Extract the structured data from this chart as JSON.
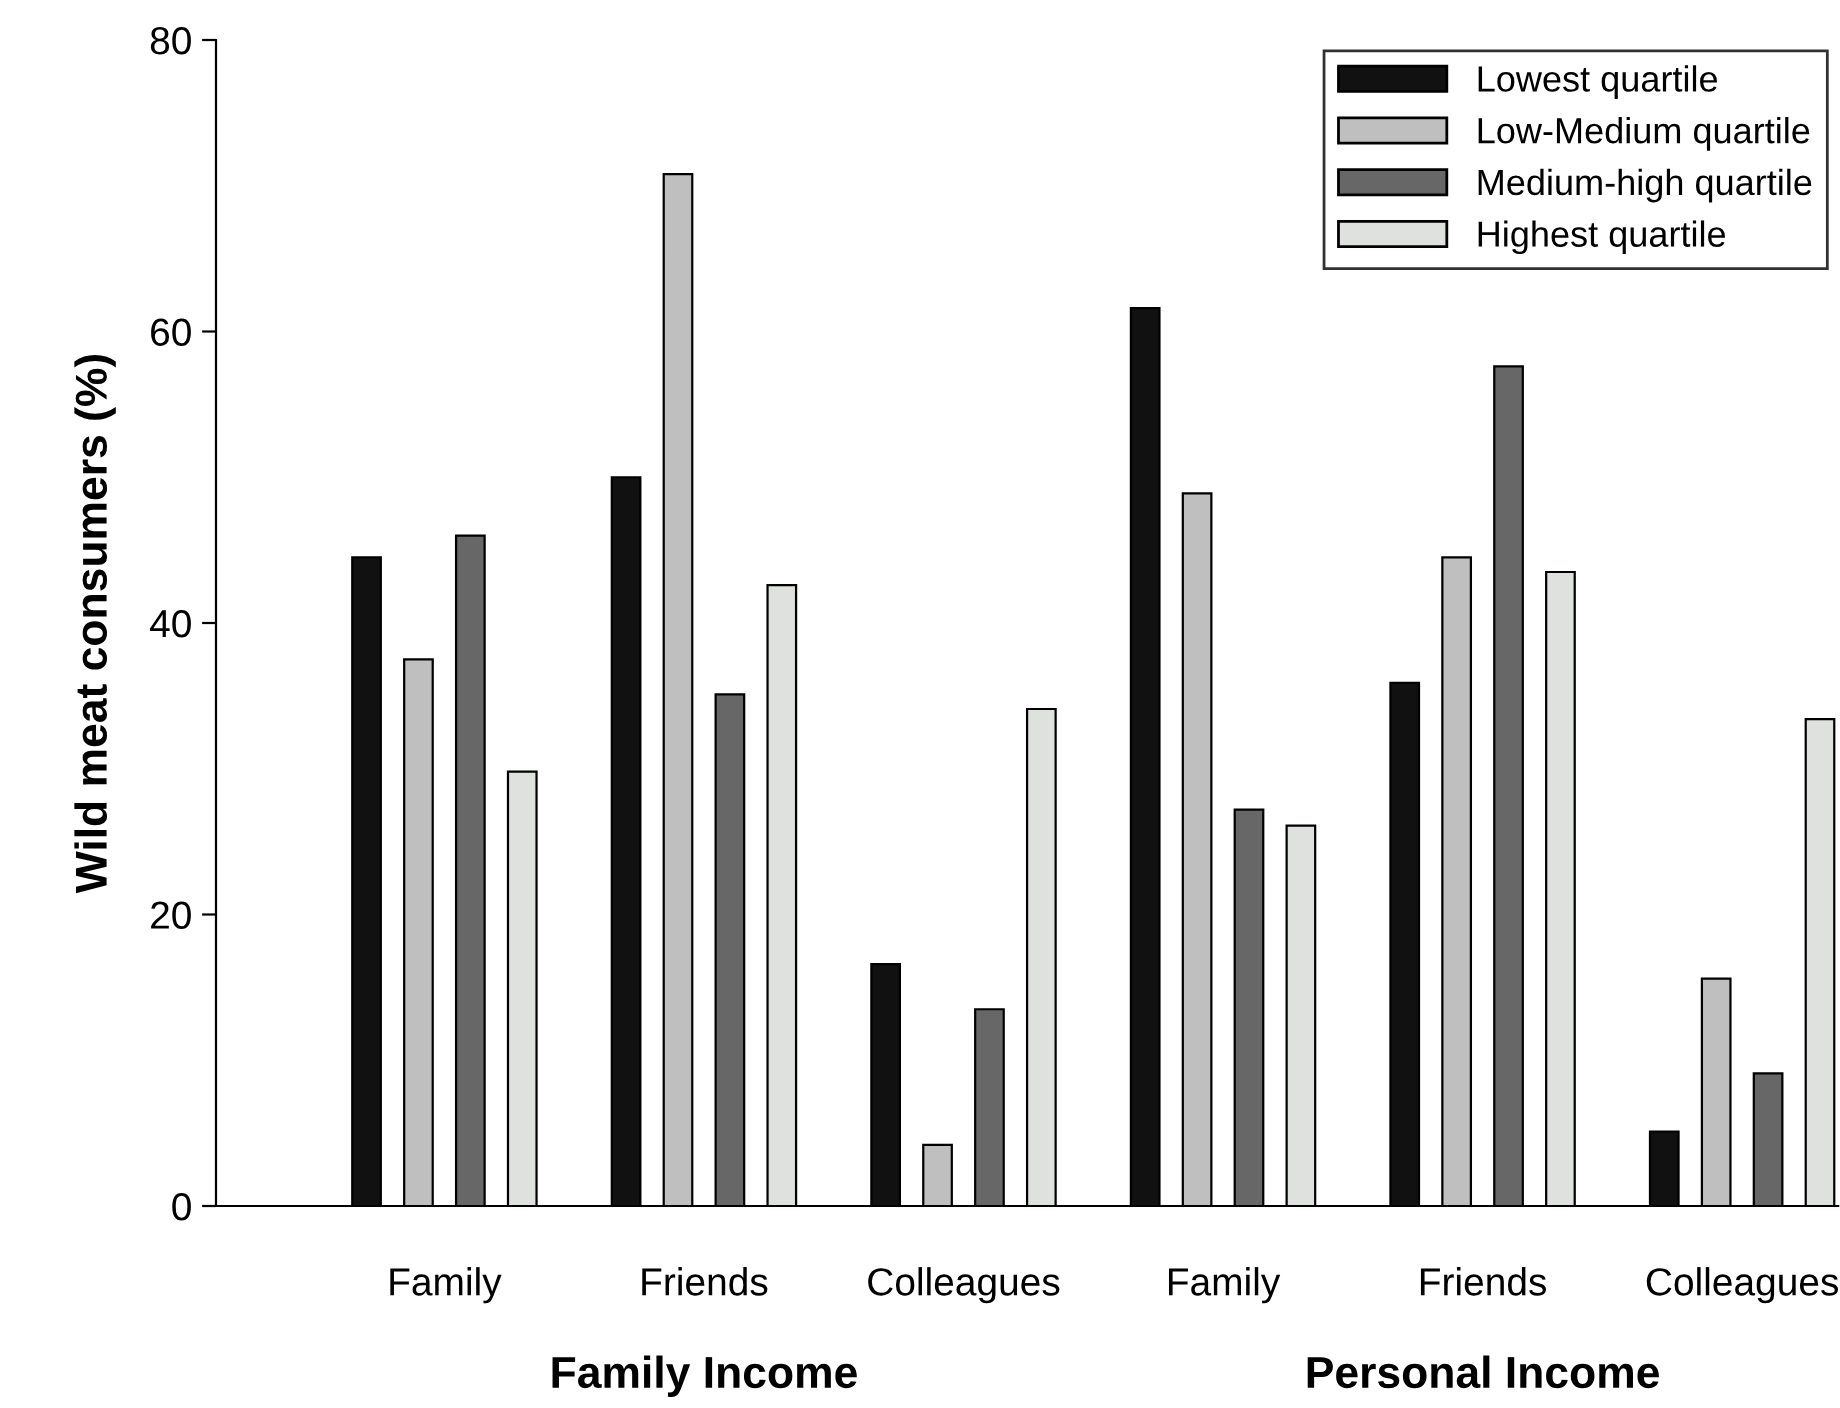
{
  "chart_data": {
    "type": "bar",
    "ylabel": "Wild meat consumers (%)",
    "categories": [
      "Family",
      "Friends",
      "Colleagues",
      "Family",
      "Friends",
      "Colleagues"
    ],
    "series": [
      {
        "name": "Lowest quartile",
        "color": "#111111",
        "values": [
          44.5,
          50.0,
          16.6,
          61.6,
          35.9,
          5.1
        ]
      },
      {
        "name": "Low-Medium quartile",
        "color": "#bfbfbf",
        "values": [
          37.5,
          70.8,
          4.2,
          48.9,
          44.5,
          15.6
        ]
      },
      {
        "name": "Medium-high quartile",
        "color": "#676767",
        "values": [
          46.0,
          35.1,
          13.5,
          27.2,
          57.6,
          9.1
        ]
      },
      {
        "name": "Highest quartile",
        "color": "#dfe1df",
        "values": [
          29.8,
          42.6,
          34.1,
          26.1,
          43.5,
          33.4
        ]
      }
    ],
    "annotations": [
      "Family Income",
      "Personal Income"
    ],
    "ylim": [
      0,
      80
    ],
    "yticks": [
      0,
      20,
      40,
      60,
      80
    ],
    "grid": false,
    "legend": "top right"
  }
}
